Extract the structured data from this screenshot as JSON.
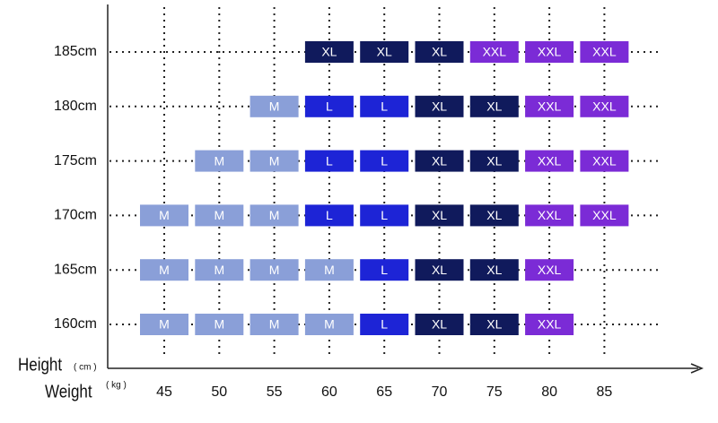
{
  "y_axis": {
    "title": "Height",
    "unit": "( cm )"
  },
  "x_axis": {
    "title": "Weight",
    "unit": "( kg )",
    "labels": [
      "45",
      "50",
      "55",
      "60",
      "65",
      "70",
      "75",
      "80",
      "85"
    ]
  },
  "size_colors": {
    "M": "#8a9fd8",
    "L": "#1d24d6",
    "XL": "#101a5c",
    "XXL": "#7b2bd6"
  },
  "rows": [
    {
      "label": "185cm",
      "cells": [
        null,
        null,
        null,
        "XL",
        "XL",
        "XL",
        "XXL",
        "XXL",
        "XXL"
      ]
    },
    {
      "label": "180cm",
      "cells": [
        null,
        null,
        "M",
        "L",
        "L",
        "XL",
        "XL",
        "XXL",
        "XXL"
      ]
    },
    {
      "label": "175cm",
      "cells": [
        null,
        "M",
        "M",
        "L",
        "L",
        "XL",
        "XL",
        "XXL",
        "XXL"
      ]
    },
    {
      "label": "170cm",
      "cells": [
        "M",
        "M",
        "M",
        "L",
        "L",
        "XL",
        "XL",
        "XXL",
        "XXL"
      ]
    },
    {
      "label": "165cm",
      "cells": [
        "M",
        "M",
        "M",
        "M",
        "L",
        "XL",
        "XL",
        "XXL",
        null
      ]
    },
    {
      "label": "160cm",
      "cells": [
        "M",
        "M",
        "M",
        "M",
        "L",
        "XL",
        "XL",
        "XXL",
        null
      ]
    }
  ]
}
